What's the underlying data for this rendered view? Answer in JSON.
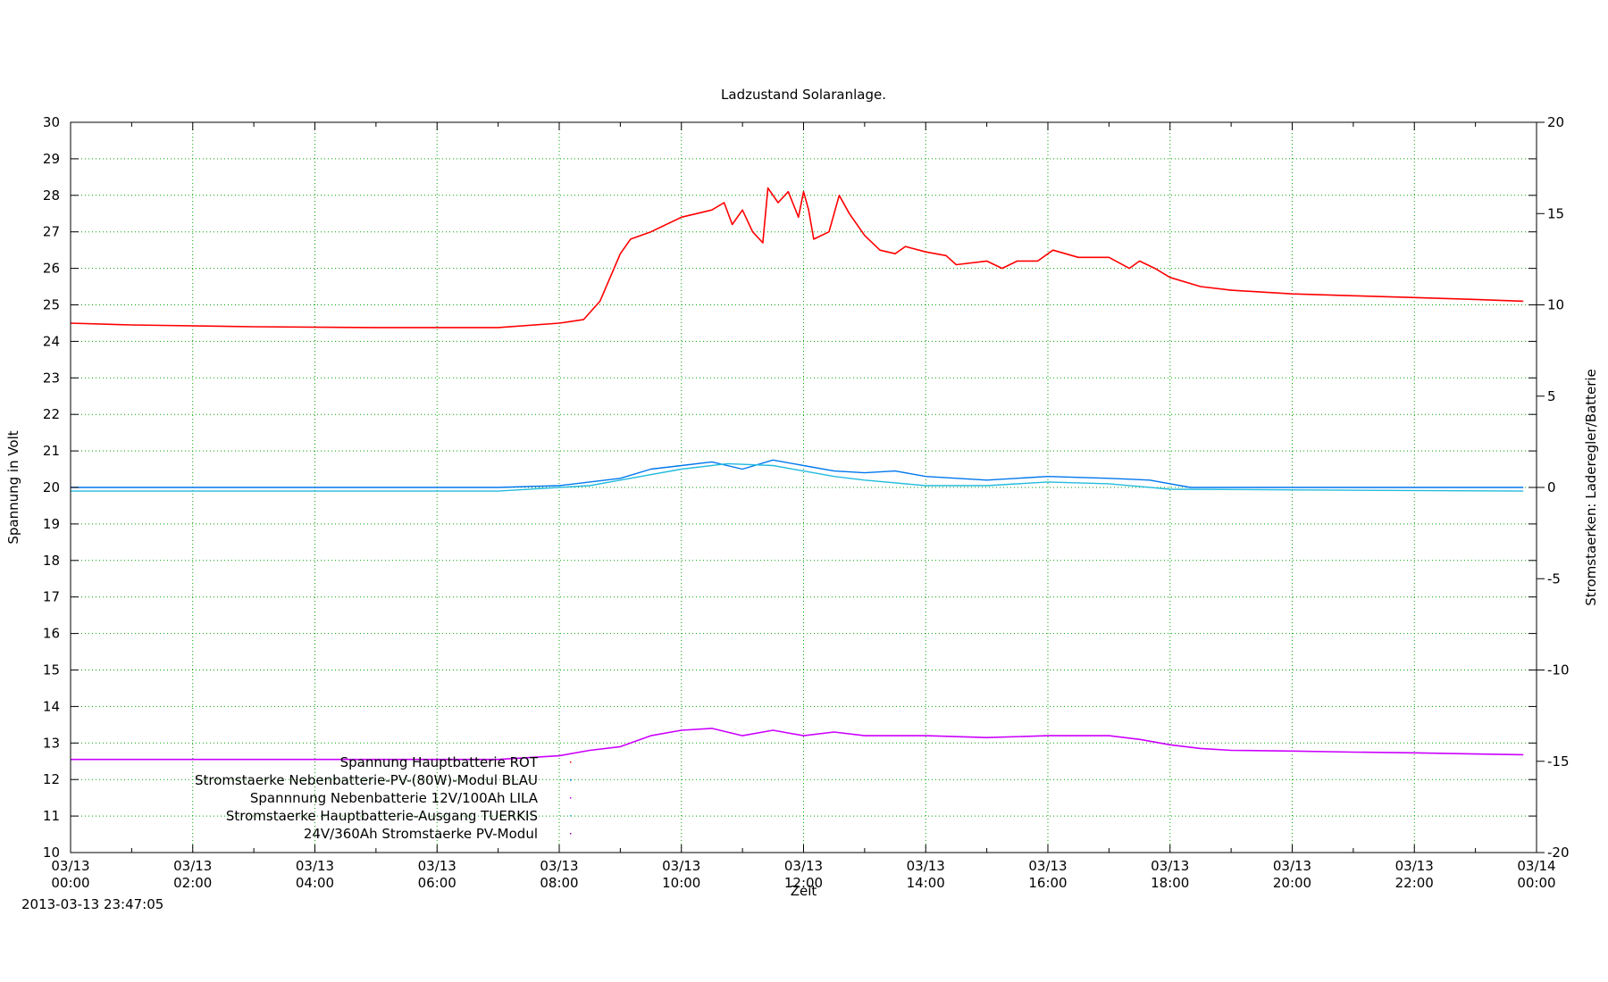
{
  "chart_data": {
    "type": "line",
    "title": "Ladzustand Solaranlage.",
    "xlabel": "Zeit",
    "ylabel": "Spannung in Volt",
    "y2label": "Stromstaerken: Laderegler/Batterie",
    "ylim": [
      10,
      30
    ],
    "y2lim": [
      -20,
      20
    ],
    "xlim": [
      "03/13 00:00",
      "03/14 00:00"
    ],
    "x_ticks": [
      {
        "date": "03/13",
        "time": "00:00"
      },
      {
        "date": "03/13",
        "time": "02:00"
      },
      {
        "date": "03/13",
        "time": "04:00"
      },
      {
        "date": "03/13",
        "time": "06:00"
      },
      {
        "date": "03/13",
        "time": "08:00"
      },
      {
        "date": "03/13",
        "time": "10:00"
      },
      {
        "date": "03/13",
        "time": "12:00"
      },
      {
        "date": "03/13",
        "time": "14:00"
      },
      {
        "date": "03/13",
        "time": "16:00"
      },
      {
        "date": "03/13",
        "time": "18:00"
      },
      {
        "date": "03/13",
        "time": "20:00"
      },
      {
        "date": "03/13",
        "time": "22:00"
      },
      {
        "date": "03/14",
        "time": "00:00"
      }
    ],
    "y_ticks": [
      10,
      11,
      12,
      13,
      14,
      15,
      16,
      17,
      18,
      19,
      20,
      21,
      22,
      23,
      24,
      25,
      26,
      27,
      28,
      29,
      30
    ],
    "y2_ticks": [
      -20,
      -15,
      -10,
      -5,
      0,
      5,
      10,
      15,
      20
    ],
    "grid": true,
    "legend_position": "bottom-left",
    "series": [
      {
        "name": "Spannung Hauptbatterie ROT",
        "axis": "y",
        "color": "#ff0000",
        "points": [
          [
            "00:00",
            24.5
          ],
          [
            "01:00",
            24.45
          ],
          [
            "03:00",
            24.4
          ],
          [
            "05:00",
            24.38
          ],
          [
            "07:00",
            24.38
          ],
          [
            "08:00",
            24.5
          ],
          [
            "08:24",
            24.6
          ],
          [
            "08:40",
            25.1
          ],
          [
            "09:00",
            26.4
          ],
          [
            "09:10",
            26.8
          ],
          [
            "09:30",
            27.0
          ],
          [
            "10:00",
            27.4
          ],
          [
            "10:30",
            27.6
          ],
          [
            "10:42",
            27.8
          ],
          [
            "10:50",
            27.2
          ],
          [
            "11:00",
            27.6
          ],
          [
            "11:10",
            27.0
          ],
          [
            "11:20",
            26.7
          ],
          [
            "11:25",
            28.2
          ],
          [
            "11:35",
            27.8
          ],
          [
            "11:45",
            28.1
          ],
          [
            "11:55",
            27.4
          ],
          [
            "12:00",
            28.1
          ],
          [
            "12:05",
            27.6
          ],
          [
            "12:10",
            26.8
          ],
          [
            "12:25",
            27.0
          ],
          [
            "12:35",
            28.0
          ],
          [
            "12:45",
            27.5
          ],
          [
            "13:00",
            26.9
          ],
          [
            "13:15",
            26.5
          ],
          [
            "13:30",
            26.4
          ],
          [
            "13:40",
            26.6
          ],
          [
            "14:00",
            26.45
          ],
          [
            "14:20",
            26.35
          ],
          [
            "14:30",
            26.1
          ],
          [
            "15:00",
            26.2
          ],
          [
            "15:15",
            26.0
          ],
          [
            "15:30",
            26.2
          ],
          [
            "15:50",
            26.2
          ],
          [
            "16:05",
            26.5
          ],
          [
            "16:30",
            26.3
          ],
          [
            "17:00",
            26.3
          ],
          [
            "17:20",
            26.0
          ],
          [
            "17:30",
            26.2
          ],
          [
            "17:45",
            26.0
          ],
          [
            "18:00",
            25.75
          ],
          [
            "18:30",
            25.5
          ],
          [
            "19:00",
            25.4
          ],
          [
            "20:00",
            25.3
          ],
          [
            "21:00",
            25.25
          ],
          [
            "22:00",
            25.2
          ],
          [
            "23:00",
            25.15
          ],
          [
            "23:47",
            25.1
          ]
        ]
      },
      {
        "name": "Stromstaerke Nebenbatterie-PV-(80W)-Modul BLAU",
        "axis": "y2",
        "color": "#0077ee",
        "points": [
          [
            "00:00",
            0
          ],
          [
            "07:00",
            0
          ],
          [
            "08:00",
            0.1
          ],
          [
            "09:00",
            0.5
          ],
          [
            "09:30",
            1.0
          ],
          [
            "10:00",
            1.2
          ],
          [
            "10:30",
            1.4
          ],
          [
            "11:00",
            1.0
          ],
          [
            "11:30",
            1.5
          ],
          [
            "12:00",
            1.2
          ],
          [
            "12:30",
            0.9
          ],
          [
            "13:00",
            0.8
          ],
          [
            "13:30",
            0.9
          ],
          [
            "14:00",
            0.6
          ],
          [
            "15:00",
            0.4
          ],
          [
            "16:00",
            0.6
          ],
          [
            "17:00",
            0.5
          ],
          [
            "17:40",
            0.4
          ],
          [
            "18:20",
            0
          ],
          [
            "23:47",
            0
          ]
        ]
      },
      {
        "name": "Spannnung Nebenbatterie 12V/100Ah LILA",
        "axis": "y",
        "color": "#cc00ff",
        "points": [
          [
            "00:00",
            12.55
          ],
          [
            "04:00",
            12.55
          ],
          [
            "07:00",
            12.55
          ],
          [
            "08:00",
            12.65
          ],
          [
            "08:30",
            12.8
          ],
          [
            "09:00",
            12.9
          ],
          [
            "09:30",
            13.2
          ],
          [
            "10:00",
            13.35
          ],
          [
            "10:30",
            13.4
          ],
          [
            "11:00",
            13.2
          ],
          [
            "11:30",
            13.35
          ],
          [
            "12:00",
            13.2
          ],
          [
            "12:30",
            13.3
          ],
          [
            "13:00",
            13.2
          ],
          [
            "14:00",
            13.2
          ],
          [
            "15:00",
            13.15
          ],
          [
            "16:00",
            13.2
          ],
          [
            "17:00",
            13.2
          ],
          [
            "17:30",
            13.1
          ],
          [
            "18:00",
            12.95
          ],
          [
            "18:30",
            12.85
          ],
          [
            "19:00",
            12.8
          ],
          [
            "20:00",
            12.78
          ],
          [
            "21:00",
            12.75
          ],
          [
            "22:00",
            12.73
          ],
          [
            "23:00",
            12.7
          ],
          [
            "23:47",
            12.68
          ]
        ]
      },
      {
        "name": "Stromstaerke Hauptbatterie-Ausgang TUERKIS",
        "axis": "y2",
        "color": "#22bbdd",
        "points": [
          [
            "00:00",
            -0.2
          ],
          [
            "07:00",
            -0.2
          ],
          [
            "08:30",
            0.1
          ],
          [
            "09:00",
            0.4
          ],
          [
            "10:00",
            1.0
          ],
          [
            "10:45",
            1.3
          ],
          [
            "11:30",
            1.2
          ],
          [
            "12:00",
            0.9
          ],
          [
            "12:30",
            0.6
          ],
          [
            "13:00",
            0.4
          ],
          [
            "14:00",
            0.1
          ],
          [
            "15:00",
            0.1
          ],
          [
            "16:00",
            0.3
          ],
          [
            "17:00",
            0.2
          ],
          [
            "18:00",
            -0.1
          ],
          [
            "23:47",
            -0.2
          ]
        ]
      },
      {
        "name": "24V/360Ah Stromstaerke PV-Modul",
        "axis": "y2",
        "color": "#990099",
        "points": []
      }
    ]
  },
  "footer": {
    "timestamp": "2013-03-13 23:47:05"
  }
}
